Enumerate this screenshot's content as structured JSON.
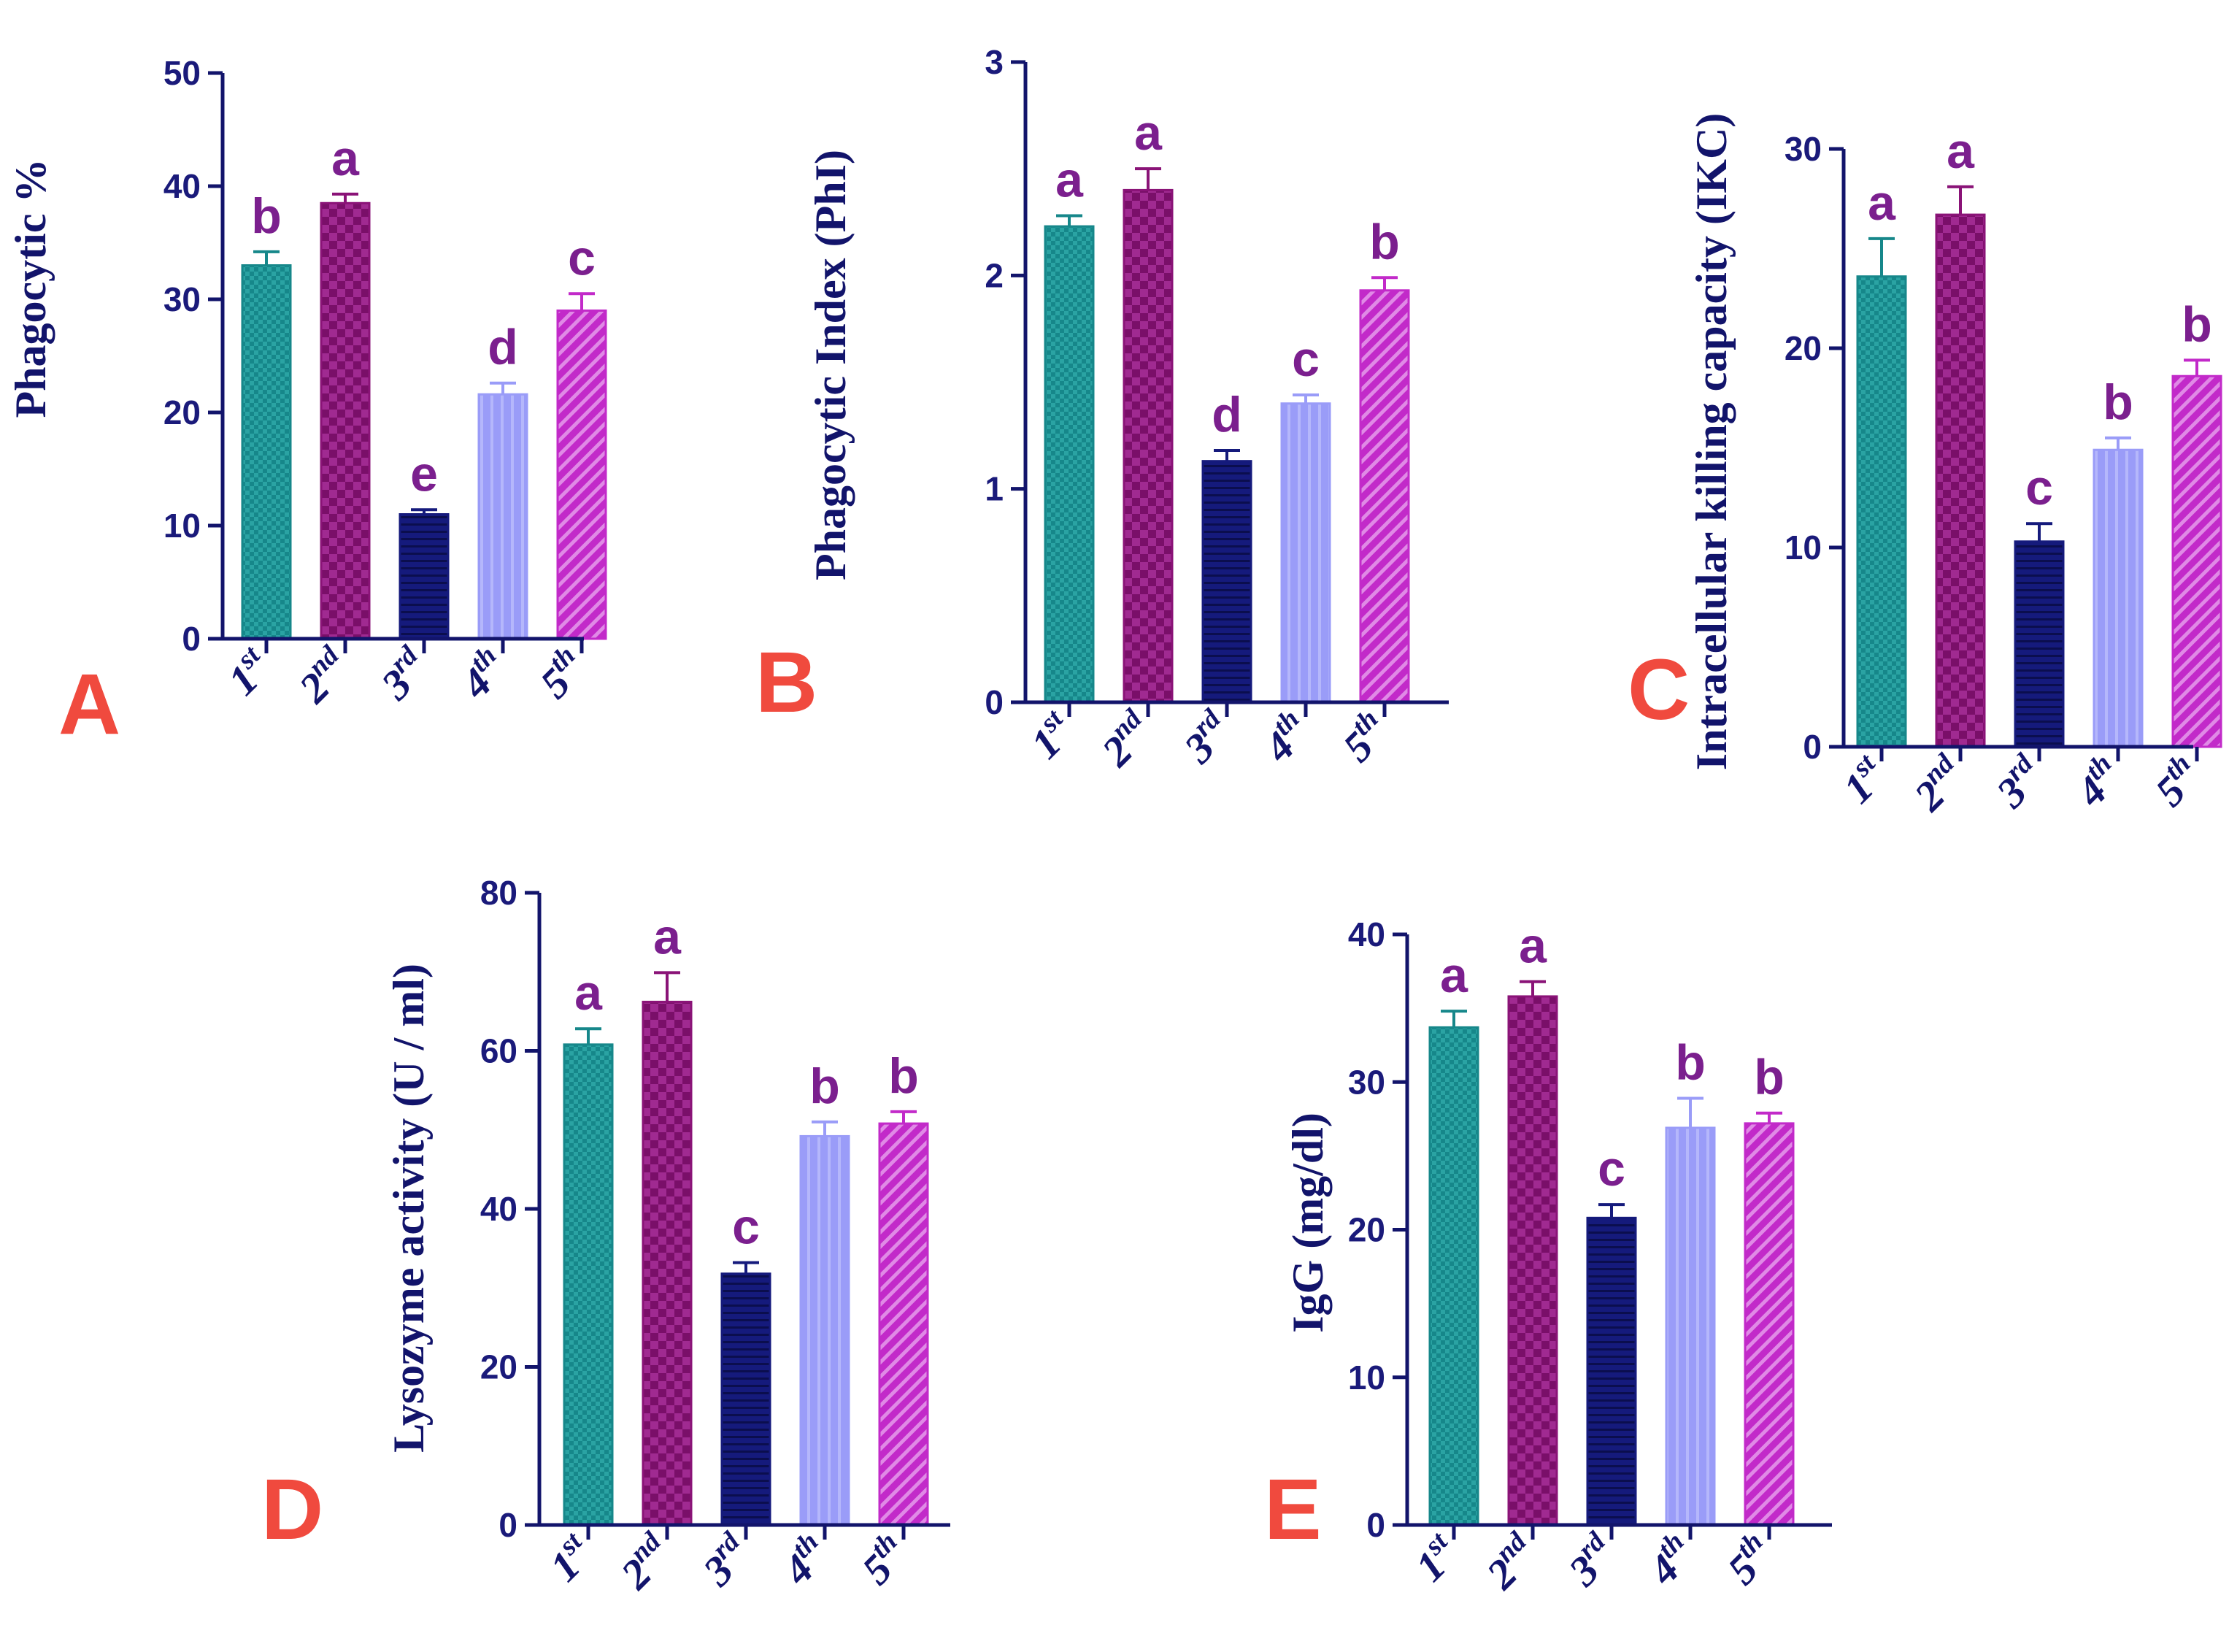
{
  "colors": {
    "axis": "#12146b",
    "letters": "#7b1f8e",
    "panel_letters": "#f04a3e",
    "bars": [
      "#16878a",
      "#8a1377",
      "#151a7c",
      "#9a9cf8",
      "#c22ac9"
    ]
  },
  "chart_data": [
    {
      "type": "bar",
      "panel": "A",
      "ylabel": "Phagocytic %",
      "categories": [
        [
          "1",
          "st"
        ],
        [
          "2",
          "nd"
        ],
        [
          "3",
          "rd"
        ],
        [
          "4",
          "th"
        ],
        [
          "5",
          "th"
        ]
      ],
      "values": [
        33,
        38.5,
        11,
        21.6,
        29
      ],
      "errors": [
        1.2,
        0.8,
        0.4,
        1.0,
        1.5
      ],
      "letters": [
        "b",
        "a",
        "e",
        "d",
        "c"
      ],
      "ylim": [
        0,
        50
      ],
      "yticks": [
        0,
        10,
        20,
        30,
        40,
        50
      ]
    },
    {
      "type": "bar",
      "panel": "B",
      "ylabel": "Phagocytic Index (PhI)",
      "categories": [
        [
          "1",
          "st"
        ],
        [
          "2",
          "nd"
        ],
        [
          "3",
          "rd"
        ],
        [
          "4",
          "th"
        ],
        [
          "5",
          "th"
        ]
      ],
      "values": [
        2.23,
        2.4,
        1.13,
        1.4,
        1.93
      ],
      "errors": [
        0.05,
        0.1,
        0.05,
        0.04,
        0.06
      ],
      "letters": [
        "a",
        "a",
        "d",
        "c",
        "b"
      ],
      "ylim": [
        0,
        3
      ],
      "yticks": [
        0,
        1,
        2,
        3
      ]
    },
    {
      "type": "bar",
      "panel": "C",
      "ylabel": "Intracellular killing capacity (IKC)",
      "categories": [
        [
          "1",
          "st"
        ],
        [
          "2",
          "nd"
        ],
        [
          "3",
          "rd"
        ],
        [
          "4",
          "th"
        ],
        [
          "5",
          "th"
        ]
      ],
      "values": [
        23.6,
        26.7,
        10.3,
        14.9,
        18.6
      ],
      "errors": [
        1.9,
        1.4,
        0.9,
        0.6,
        0.8
      ],
      "letters": [
        "a",
        "a",
        "c",
        "b",
        "b"
      ],
      "ylim": [
        0,
        30
      ],
      "yticks": [
        0,
        10,
        20,
        30
      ]
    },
    {
      "type": "bar",
      "panel": "D",
      "ylabel": "Lysozyme activity (U / ml)",
      "categories": [
        [
          "1",
          "st"
        ],
        [
          "2",
          "nd"
        ],
        [
          "3",
          "rd"
        ],
        [
          "4",
          "th"
        ],
        [
          "5",
          "th"
        ]
      ],
      "values": [
        60.8,
        66.2,
        31.8,
        49.2,
        50.8
      ],
      "errors": [
        2.0,
        3.7,
        1.4,
        1.8,
        1.5
      ],
      "letters": [
        "a",
        "a",
        "c",
        "b",
        "b"
      ],
      "ylim": [
        0,
        80
      ],
      "yticks": [
        0,
        20,
        40,
        60,
        80
      ]
    },
    {
      "type": "bar",
      "panel": "E",
      "ylabel": "IgG (mg/dl)",
      "categories": [
        [
          "1",
          "st"
        ],
        [
          "2",
          "nd"
        ],
        [
          "3",
          "rd"
        ],
        [
          "4",
          "th"
        ],
        [
          "5",
          "th"
        ]
      ],
      "values": [
        33.7,
        35.8,
        20.8,
        26.9,
        27.2
      ],
      "errors": [
        1.1,
        1.0,
        0.9,
        2.0,
        0.7
      ],
      "letters": [
        "a",
        "a",
        "c",
        "b",
        "b"
      ],
      "ylim": [
        0,
        40
      ],
      "yticks": [
        0,
        10,
        20,
        30,
        40
      ]
    }
  ]
}
